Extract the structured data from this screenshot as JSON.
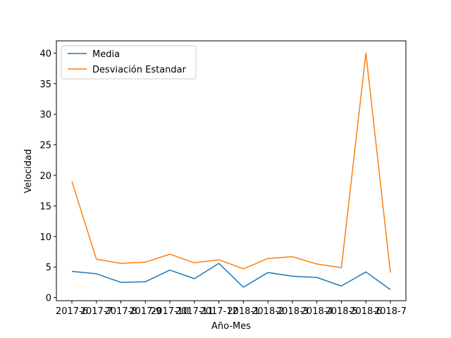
{
  "chart_data": {
    "type": "line",
    "title": "",
    "xlabel": "Año-Mes",
    "ylabel": "Velocidad",
    "categories": [
      "2017-6",
      "2017-7",
      "2017-8",
      "2017-9",
      "2017-10",
      "2017-11",
      "2017-12",
      "2018-1",
      "2018-2",
      "2018-3",
      "2018-4",
      "2018-5",
      "2018-6",
      "2018-7"
    ],
    "series": [
      {
        "name": "Media",
        "color": "#1f77b4",
        "values": [
          4.3,
          3.9,
          2.5,
          2.6,
          4.5,
          3.1,
          5.6,
          1.7,
          4.1,
          3.5,
          3.3,
          1.9,
          4.2,
          1.3
        ]
      },
      {
        "name": "Desviación Estandar",
        "color": "#ff7f0e",
        "values": [
          19.0,
          6.3,
          5.6,
          5.8,
          7.1,
          5.7,
          6.2,
          4.7,
          6.4,
          6.7,
          5.5,
          4.9,
          40.0,
          4.1
        ]
      }
    ],
    "yticks": [
      0,
      5,
      10,
      15,
      20,
      25,
      30,
      35,
      40
    ],
    "ylim": [
      -0.5,
      42
    ],
    "legend": "upper-left"
  }
}
